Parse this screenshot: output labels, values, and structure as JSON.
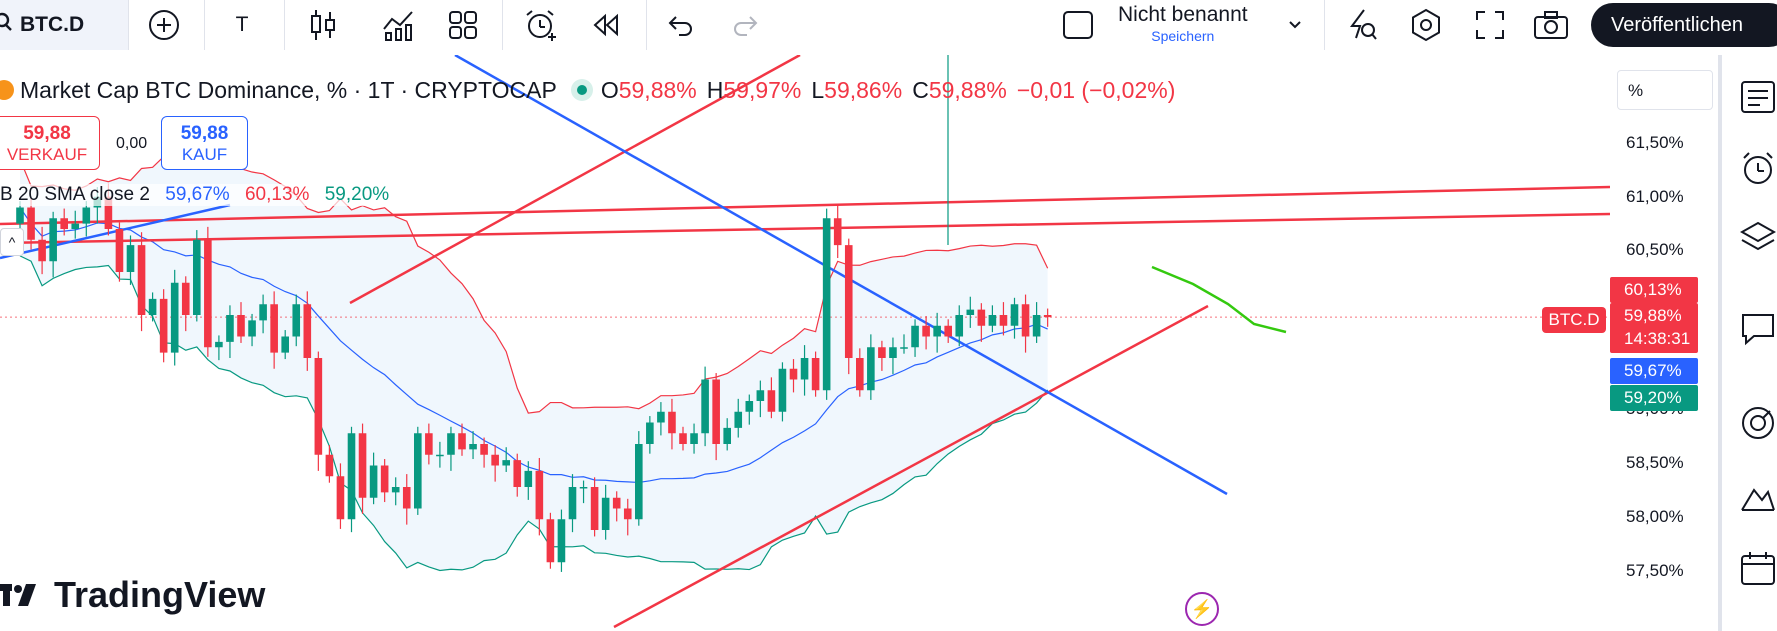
{
  "toolbar": {
    "symbol": "BTC.D",
    "text_tool_label": "T",
    "layout_name": "Nicht benannt",
    "save_label": "Speichern",
    "publish_label": "Veröffentlichen"
  },
  "legend": {
    "title": "Market Cap BTC Dominance, % · 1T · CRYPTOCAP",
    "o_label": "O",
    "o_value": "59,88%",
    "h_label": "H",
    "h_value": "59,97%",
    "l_label": "L",
    "l_value": "59,86%",
    "c_label": "C",
    "c_value": "59,88%",
    "change": "−0,01 (−0,02%)"
  },
  "trade": {
    "sell_price": "59,88",
    "sell_label": "VERKAUF",
    "spread": "0,00",
    "buy_price": "59,88",
    "buy_label": "KAUF"
  },
  "indicator": {
    "name": "B 20 SMA close 2",
    "basis": "59,67%",
    "upper": "60,13%",
    "lower": "59,20%",
    "collapse": "^"
  },
  "price_scale": {
    "unit_button": "%",
    "ticks": [
      "61,50%",
      "61,00%",
      "60,50%",
      "59,00%",
      "58,50%",
      "58,00%",
      "57,50%"
    ],
    "symbol_tag": "BTC.D",
    "upper_label": "60,13%",
    "last_label": "59,88%",
    "countdown": "14:38:31",
    "basis_label": "59,67%",
    "lower_label": "59,20%"
  },
  "watermark": "TradingView",
  "colors": {
    "up": "#089981",
    "down": "#f23645",
    "basis": "#2962ff",
    "trend_green": "#34c90f",
    "band_fill": "#f0f7fd"
  }
}
